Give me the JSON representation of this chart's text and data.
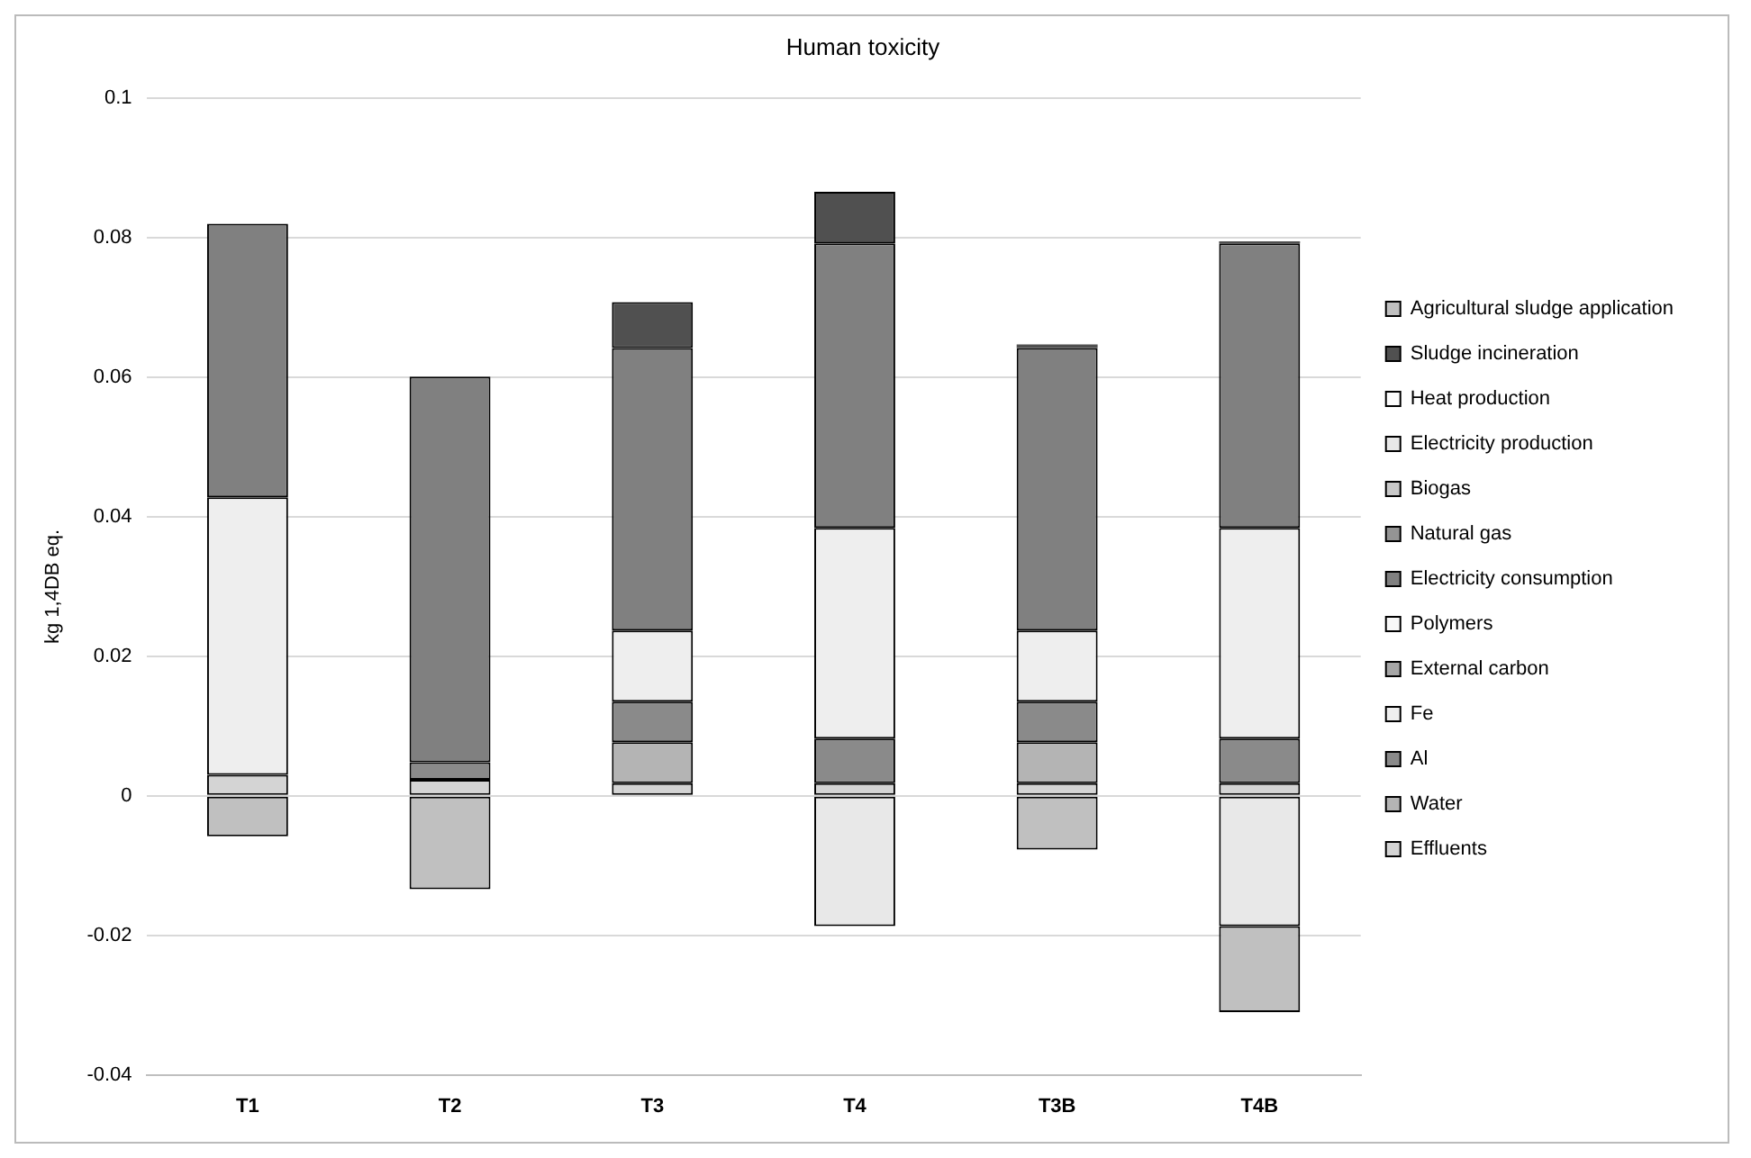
{
  "chart_data": {
    "type": "bar",
    "title": "Human toxicity",
    "ylabel": "kg 1,4DB eq.",
    "stacked": true,
    "categories": [
      "T1",
      "T2",
      "T3",
      "T4",
      "T3B",
      "T4B"
    ],
    "series": [
      {
        "name": "Effluents",
        "color": "#d4d4d4",
        "values": [
          0.003,
          0.0023,
          0.0018,
          0.0018,
          0.0018,
          0.0018
        ]
      },
      {
        "name": "Water",
        "color": "#b4b4b4",
        "values": [
          null,
          null,
          0.0059,
          null,
          0.0059,
          null
        ]
      },
      {
        "name": "Al",
        "color": "#8a8a8a",
        "values": [
          null,
          0.0025,
          0.0058,
          0.0064,
          0.0058,
          0.0064
        ]
      },
      {
        "name": "Fe",
        "color": "#eeeeee",
        "values": [
          0.0398,
          null,
          0.0102,
          0.0302,
          0.0102,
          0.0302
        ]
      },
      {
        "name": "External carbon",
        "color": "#a6a6a6",
        "values": [
          null,
          null,
          null,
          null,
          null,
          null
        ]
      },
      {
        "name": "Polymers",
        "color": "#f8f8f8",
        "values": [
          null,
          null,
          null,
          null,
          null,
          null
        ]
      },
      {
        "name": "Electricity consumption",
        "color": "#808080",
        "values": [
          0.0392,
          0.0553,
          0.0405,
          0.0408,
          0.0405,
          0.0408
        ]
      },
      {
        "name": "Natural gas",
        "color": "#949494",
        "values": [
          null,
          null,
          null,
          null,
          null,
          null
        ]
      },
      {
        "name": "Biogas",
        "color": "#c8c8c8",
        "values": [
          null,
          null,
          null,
          null,
          null,
          null
        ]
      },
      {
        "name": "Electricity production",
        "color": "#e8e8e8",
        "values": [
          null,
          null,
          null,
          -0.0187,
          null,
          -0.0187
        ]
      },
      {
        "name": "Heat production",
        "color": "#fcfcfc",
        "values": [
          null,
          null,
          null,
          null,
          null,
          null
        ]
      },
      {
        "name": "Sludge incineration",
        "color": "#505050",
        "values": [
          null,
          null,
          0.0066,
          0.0074,
          0.0005,
          0.0003
        ]
      },
      {
        "name": "Agricultural sludge application",
        "color": "#c0c0c0",
        "values": [
          -0.0058,
          -0.0134,
          null,
          null,
          -0.0077,
          -0.0123
        ]
      }
    ],
    "ylim": [
      -0.04,
      0.1
    ],
    "yticks": [
      -0.04,
      -0.02,
      0,
      0.02,
      0.04,
      0.06,
      0.08,
      0.1
    ],
    "grid": "y",
    "legend": "right"
  }
}
